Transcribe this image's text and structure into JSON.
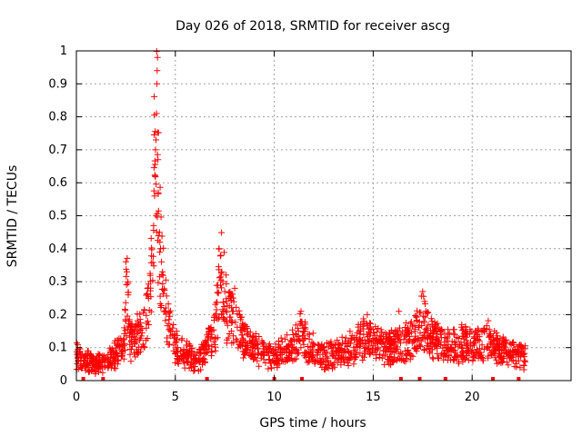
{
  "chart_data": {
    "type": "scatter",
    "title": "Day 026 of 2018, SRMTID for receiver ascg",
    "xlabel": "GPS time / hours",
    "ylabel": "SRMTID / TECUs",
    "xlim": [
      0,
      25
    ],
    "ylim": [
      0,
      1
    ],
    "xticks": [
      "0",
      "5",
      "10",
      "15",
      "20"
    ],
    "xtick_values": [
      0,
      5,
      10,
      15,
      20
    ],
    "yticks": [
      "0",
      "0.1",
      "0.2",
      "0.3",
      "0.4",
      "0.5",
      "0.6",
      "0.7",
      "0.8",
      "0.9",
      "1"
    ],
    "ytick_values": [
      0,
      0.1,
      0.2,
      0.3,
      0.4,
      0.5,
      0.6,
      0.7,
      0.8,
      0.9,
      1
    ],
    "grid": true,
    "marker": "plus",
    "series_color": "#ff0000",
    "marker_bar_positions": [
      0.35,
      1.35,
      6.6,
      10.0,
      11.4,
      16.4,
      17.35,
      18.65,
      21.05,
      22.35
    ],
    "profile": [
      [
        0.0,
        0.08
      ],
      [
        0.5,
        0.06
      ],
      [
        1.0,
        0.05
      ],
      [
        1.5,
        0.06
      ],
      [
        2.0,
        0.08
      ],
      [
        2.4,
        0.1
      ],
      [
        2.55,
        0.28
      ],
      [
        2.7,
        0.12
      ],
      [
        3.0,
        0.13
      ],
      [
        3.4,
        0.15
      ],
      [
        3.7,
        0.22
      ],
      [
        3.9,
        0.45
      ],
      [
        4.0,
        0.9
      ],
      [
        4.1,
        0.6
      ],
      [
        4.3,
        0.33
      ],
      [
        4.6,
        0.18
      ],
      [
        5.0,
        0.1
      ],
      [
        5.5,
        0.08
      ],
      [
        6.0,
        0.06
      ],
      [
        6.5,
        0.08
      ],
      [
        7.0,
        0.15
      ],
      [
        7.3,
        0.35
      ],
      [
        7.6,
        0.22
      ],
      [
        8.0,
        0.18
      ],
      [
        8.5,
        0.12
      ],
      [
        9.0,
        0.1
      ],
      [
        9.5,
        0.08
      ],
      [
        10.0,
        0.07
      ],
      [
        10.5,
        0.09
      ],
      [
        11.0,
        0.1
      ],
      [
        11.3,
        0.16
      ],
      [
        11.6,
        0.12
      ],
      [
        12.0,
        0.09
      ],
      [
        12.5,
        0.07
      ],
      [
        13.0,
        0.08
      ],
      [
        13.5,
        0.09
      ],
      [
        14.0,
        0.1
      ],
      [
        14.5,
        0.13
      ],
      [
        15.0,
        0.12
      ],
      [
        15.5,
        0.1
      ],
      [
        16.0,
        0.1
      ],
      [
        16.5,
        0.11
      ],
      [
        17.0,
        0.13
      ],
      [
        17.5,
        0.18
      ],
      [
        18.0,
        0.13
      ],
      [
        18.5,
        0.11
      ],
      [
        19.0,
        0.1
      ],
      [
        19.5,
        0.12
      ],
      [
        20.0,
        0.1
      ],
      [
        20.5,
        0.12
      ],
      [
        21.0,
        0.12
      ],
      [
        21.5,
        0.09
      ],
      [
        22.0,
        0.08
      ],
      [
        22.7,
        0.07
      ]
    ],
    "spikes": [
      [
        2.5,
        0.36
      ],
      [
        2.55,
        0.33
      ],
      [
        2.6,
        0.3
      ],
      [
        2.62,
        0.26
      ],
      [
        3.9,
        0.47
      ],
      [
        3.95,
        0.56
      ],
      [
        3.98,
        0.62
      ],
      [
        4.0,
        0.7
      ],
      [
        4.02,
        0.73
      ],
      [
        4.05,
        0.81
      ],
      [
        4.07,
        0.9
      ],
      [
        4.08,
        0.94
      ],
      [
        4.1,
        0.98
      ],
      [
        4.12,
        0.67
      ],
      [
        4.14,
        0.57
      ],
      [
        4.2,
        0.45
      ],
      [
        4.22,
        0.42
      ],
      [
        4.25,
        0.4
      ],
      [
        4.3,
        0.36
      ],
      [
        4.35,
        0.33
      ],
      [
        7.2,
        0.4
      ],
      [
        7.3,
        0.38
      ],
      [
        7.35,
        0.33
      ],
      [
        7.4,
        0.3
      ],
      [
        7.5,
        0.27
      ],
      [
        8.0,
        0.28
      ],
      [
        11.35,
        0.21
      ],
      [
        14.7,
        0.2
      ],
      [
        17.5,
        0.27
      ],
      [
        17.6,
        0.24
      ],
      [
        16.3,
        0.21
      ]
    ],
    "point_count": 1800
  }
}
